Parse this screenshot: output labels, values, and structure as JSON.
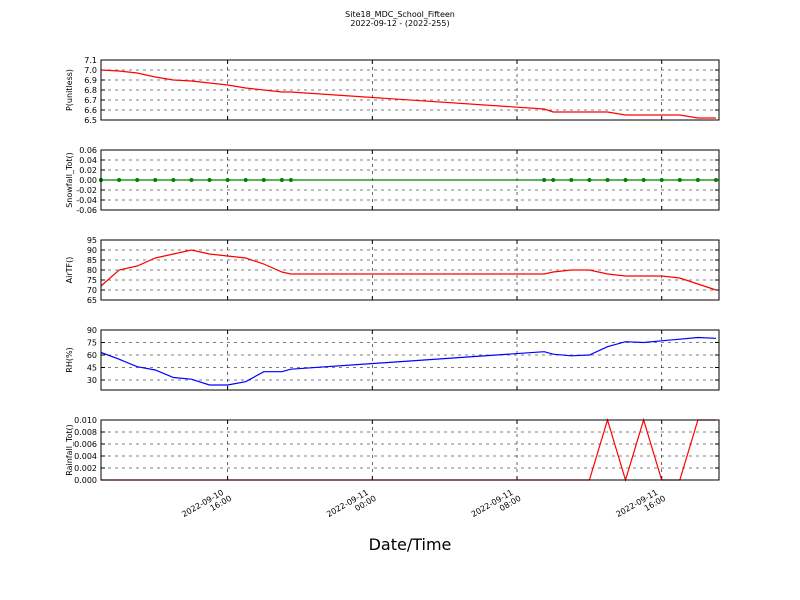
{
  "chart_data": [
    {
      "type": "line",
      "title": "Site18_MDC_School_Fifteen",
      "subtitle": "2022-09-12 - (2022-255)",
      "ylabel": "P(unitless)",
      "x": [
        "2022-09-10 09:00",
        "2022-09-10 10:00",
        "2022-09-10 11:00",
        "2022-09-10 12:00",
        "2022-09-10 13:00",
        "2022-09-10 14:00",
        "2022-09-10 15:00",
        "2022-09-10 16:00",
        "2022-09-10 17:00",
        "2022-09-10 18:00",
        "2022-09-10 19:00",
        "2022-09-10 19:30",
        "2022-09-11 09:30",
        "2022-09-11 10:00",
        "2022-09-11 11:00",
        "2022-09-11 12:00",
        "2022-09-11 13:00",
        "2022-09-11 14:00",
        "2022-09-11 15:00",
        "2022-09-11 16:00",
        "2022-09-11 17:00",
        "2022-09-11 18:00",
        "2022-09-11 19:00"
      ],
      "series": [
        {
          "name": "P",
          "color": "#ff0000",
          "values": [
            7.0,
            6.99,
            6.97,
            6.93,
            6.9,
            6.89,
            6.87,
            6.85,
            6.82,
            6.8,
            6.78,
            6.78,
            6.61,
            6.58,
            6.58,
            6.58,
            6.58,
            6.55,
            6.55,
            6.55,
            6.55,
            6.52,
            6.52
          ]
        }
      ],
      "xlim": [
        "2022-09-10 09:00",
        "2022-09-11 19:10"
      ],
      "xticks": [
        "2022-09-10 16:00",
        "2022-09-11 00:00",
        "2022-09-11 08:00",
        "2022-09-11 16:00"
      ],
      "ylim": [
        6.5,
        7.1
      ],
      "yticks": [
        6.5,
        6.6,
        6.7,
        6.8,
        6.9,
        {
          "value": 7,
          "label": "7.0"
        },
        7.1
      ],
      "grid": true
    },
    {
      "type": "line",
      "ylabel": "Snowfall_Tot()",
      "x": [
        "2022-09-10 09:00",
        "2022-09-10 10:00",
        "2022-09-10 11:00",
        "2022-09-10 12:00",
        "2022-09-10 13:00",
        "2022-09-10 14:00",
        "2022-09-10 15:00",
        "2022-09-10 16:00",
        "2022-09-10 17:00",
        "2022-09-10 18:00",
        "2022-09-10 19:00",
        "2022-09-10 19:30",
        "2022-09-11 09:30",
        "2022-09-11 10:00",
        "2022-09-11 11:00",
        "2022-09-11 12:00",
        "2022-09-11 13:00",
        "2022-09-11 14:00",
        "2022-09-11 15:00",
        "2022-09-11 16:00",
        "2022-09-11 17:00",
        "2022-09-11 18:00",
        "2022-09-11 19:00"
      ],
      "series": [
        {
          "name": "Snowfall",
          "color": "#008000",
          "marker": true,
          "values": [
            0,
            0,
            0,
            0,
            0,
            0,
            0,
            0,
            0,
            0,
            0,
            0,
            0,
            0,
            0,
            0,
            0,
            0,
            0,
            0,
            0,
            0,
            0
          ]
        }
      ],
      "xlim": [
        "2022-09-10 09:00",
        "2022-09-11 19:10"
      ],
      "xticks": [
        "2022-09-10 16:00",
        "2022-09-11 00:00",
        "2022-09-11 08:00",
        "2022-09-11 16:00"
      ],
      "ylim": [
        -0.06,
        0.06
      ],
      "yticks": [
        -0.06,
        -0.04,
        -0.02,
        {
          "value": 0,
          "label": "0.00"
        },
        0.02,
        0.04,
        0.06
      ],
      "grid": true
    },
    {
      "type": "line",
      "ylabel": "AirTF()",
      "x": [
        "2022-09-10 09:00",
        "2022-09-10 10:00",
        "2022-09-10 11:00",
        "2022-09-10 12:00",
        "2022-09-10 13:00",
        "2022-09-10 14:00",
        "2022-09-10 15:00",
        "2022-09-10 16:00",
        "2022-09-10 17:00",
        "2022-09-10 18:00",
        "2022-09-10 19:00",
        "2022-09-10 19:30",
        "2022-09-11 09:30",
        "2022-09-11 10:00",
        "2022-09-11 11:00",
        "2022-09-11 12:00",
        "2022-09-11 13:00",
        "2022-09-11 14:00",
        "2022-09-11 15:00",
        "2022-09-11 16:00",
        "2022-09-11 17:00",
        "2022-09-11 18:00",
        "2022-09-11 19:00"
      ],
      "series": [
        {
          "name": "AirTF",
          "color": "#ff0000",
          "values": [
            72,
            80,
            82,
            86,
            88,
            90,
            88,
            87,
            86,
            83,
            79,
            78,
            78,
            79,
            80,
            80,
            78,
            77,
            77,
            77,
            76,
            73,
            70
          ]
        }
      ],
      "xlim": [
        "2022-09-10 09:00",
        "2022-09-11 19:10"
      ],
      "xticks": [
        "2022-09-10 16:00",
        "2022-09-11 00:00",
        "2022-09-11 08:00",
        "2022-09-11 16:00"
      ],
      "ylim": [
        65,
        95
      ],
      "yticks": [
        65,
        70,
        75,
        80,
        85,
        90,
        95
      ],
      "grid": true
    },
    {
      "type": "line",
      "ylabel": "RH(%)",
      "x": [
        "2022-09-10 09:00",
        "2022-09-10 10:00",
        "2022-09-10 11:00",
        "2022-09-10 12:00",
        "2022-09-10 13:00",
        "2022-09-10 14:00",
        "2022-09-10 15:00",
        "2022-09-10 16:00",
        "2022-09-10 17:00",
        "2022-09-10 18:00",
        "2022-09-10 19:00",
        "2022-09-10 19:30",
        "2022-09-11 09:30",
        "2022-09-11 10:00",
        "2022-09-11 11:00",
        "2022-09-11 12:00",
        "2022-09-11 13:00",
        "2022-09-11 14:00",
        "2022-09-11 15:00",
        "2022-09-11 16:00",
        "2022-09-11 17:00",
        "2022-09-11 18:00",
        "2022-09-11 19:00"
      ],
      "series": [
        {
          "name": "RH",
          "color": "#0000ff",
          "values": [
            63,
            55,
            46,
            42,
            33,
            31,
            24,
            24,
            28,
            40,
            40,
            43,
            64,
            61,
            59,
            60,
            70,
            76,
            75,
            77,
            79,
            81,
            80
          ]
        }
      ],
      "xlim": [
        "2022-09-10 09:00",
        "2022-09-11 19:10"
      ],
      "xticks": [
        "2022-09-10 16:00",
        "2022-09-11 00:00",
        "2022-09-11 08:00",
        "2022-09-11 16:00"
      ],
      "ylim": [
        18,
        90
      ],
      "yticks": [
        30,
        45,
        60,
        75,
        90
      ],
      "grid": true
    },
    {
      "type": "line",
      "ylabel": "Rainfall_Tot()",
      "xlabel": "Date/Time",
      "x": [
        "2022-09-10 09:00",
        "2022-09-10 10:00",
        "2022-09-10 11:00",
        "2022-09-10 12:00",
        "2022-09-10 13:00",
        "2022-09-10 14:00",
        "2022-09-10 15:00",
        "2022-09-10 16:00",
        "2022-09-10 17:00",
        "2022-09-10 18:00",
        "2022-09-10 19:00",
        "2022-09-10 19:30",
        "2022-09-11 09:30",
        "2022-09-11 10:00",
        "2022-09-11 11:00",
        "2022-09-11 12:00",
        "2022-09-11 13:00",
        "2022-09-11 14:00",
        "2022-09-11 15:00",
        "2022-09-11 16:00",
        "2022-09-11 17:00",
        "2022-09-11 18:00",
        "2022-09-11 19:00"
      ],
      "series": [
        {
          "name": "Rainfall",
          "color": "#ff0000",
          "values": [
            0,
            0,
            0,
            0,
            0,
            0,
            0,
            0,
            0,
            0,
            0,
            0,
            0,
            0,
            0,
            0,
            0.01,
            0,
            0.01,
            0,
            0,
            0.01,
            0.01
          ]
        }
      ],
      "xlim": [
        "2022-09-10 09:00",
        "2022-09-11 19:10"
      ],
      "xticks": [
        "2022-09-10 16:00",
        "2022-09-11 00:00",
        "2022-09-11 08:00",
        "2022-09-11 16:00"
      ],
      "ylim": [
        0,
        0.01
      ],
      "yticks": [
        {
          "value": 0,
          "label": "0.000"
        },
        0.002,
        0.004,
        0.006,
        0.008,
        {
          "value": 0.01,
          "label": "0.010"
        }
      ],
      "grid": true
    }
  ]
}
